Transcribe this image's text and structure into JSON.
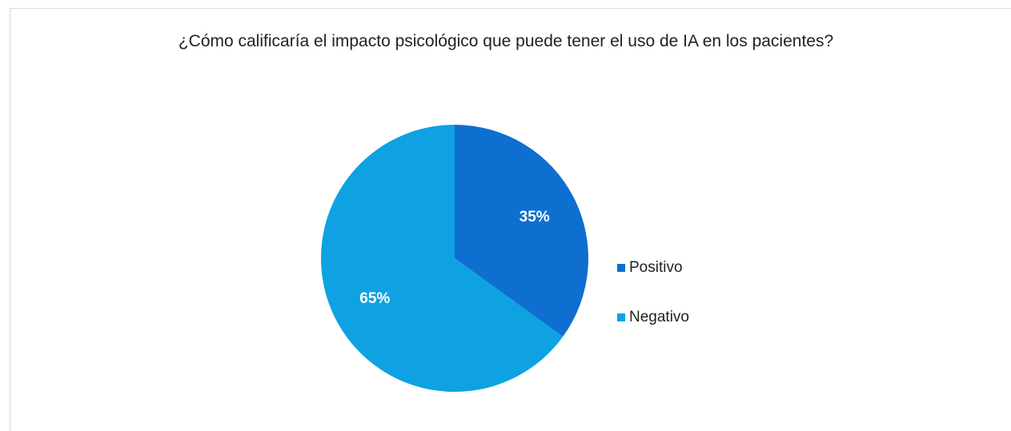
{
  "chart_data": {
    "type": "pie",
    "title": "¿Cómo calificaría el impacto psicológico que puede tener el uso de IA en los pacientes?",
    "categories": [
      "Positivo",
      "Negativo"
    ],
    "values": [
      35,
      65
    ],
    "value_labels": [
      "35%",
      "65%"
    ],
    "colors": [
      "#0e6fd0",
      "#0ea2e2"
    ],
    "legend": "right"
  }
}
